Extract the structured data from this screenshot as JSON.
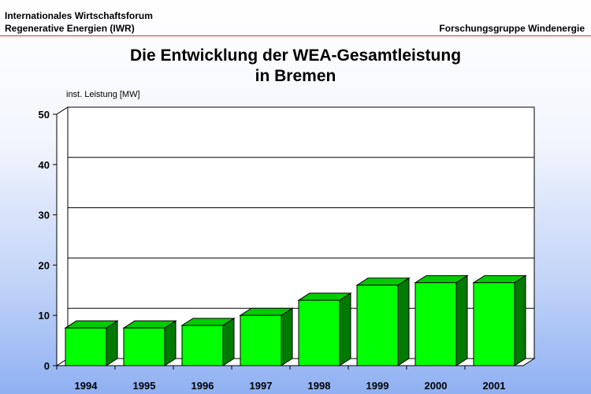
{
  "header": {
    "org_line1": "Internationales Wirtschaftsforum",
    "org_line2": "Regenerative Energien (IWR)",
    "group": "Forschungsgruppe Windenergie"
  },
  "colors": {
    "bar_front": "#00ff00",
    "bar_top": "#00cc00",
    "bar_side": "#007a00",
    "header_rule": "#d8312c"
  },
  "chart_data": {
    "type": "bar",
    "title_line1": "Die Entwicklung der WEA-Gesamtleistung",
    "title_line2": "in Bremen",
    "ylabel": "inst. Leistung [MW]",
    "xlabel": "",
    "categories": [
      "1994",
      "1995",
      "1996",
      "1997",
      "1998",
      "1999",
      "2000",
      "2001"
    ],
    "values": [
      7.5,
      7.5,
      8,
      10,
      13,
      16,
      16.5,
      16.5
    ],
    "ylim": [
      0,
      50
    ],
    "yticks": [
      0,
      10,
      20,
      30,
      40,
      50
    ],
    "grid": true,
    "legend": "none"
  }
}
